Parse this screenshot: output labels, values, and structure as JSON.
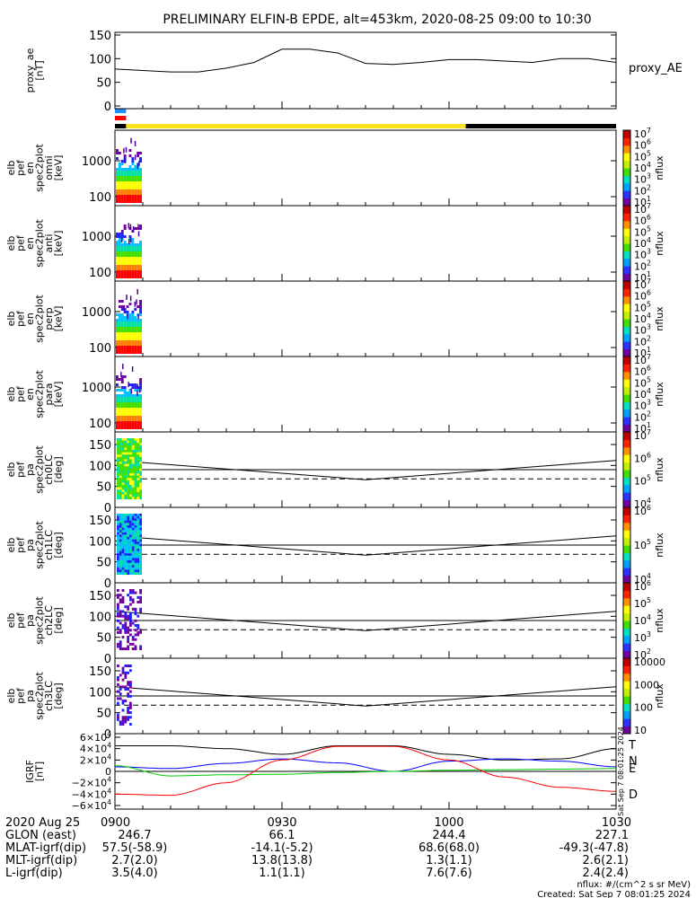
{
  "title": "PRELIMINARY ELFIN-B EPDE, alt=453km, 2020-08-25 09:00 to 10:30",
  "chart_data": [
    {
      "type": "line",
      "ylabel": "proxy_ae\n[nT]",
      "legend_label": "proxy_AE",
      "ylim": [
        0,
        150
      ],
      "yticks": [
        0,
        50,
        100,
        150
      ],
      "x_minutes": [
        0,
        5,
        10,
        15,
        20,
        25,
        30,
        35,
        40,
        45,
        50,
        55,
        60,
        65,
        70,
        75,
        80,
        85,
        90
      ],
      "values": [
        78,
        75,
        72,
        72,
        80,
        92,
        120,
        120,
        112,
        90,
        88,
        92,
        98,
        98,
        95,
        92,
        100,
        100,
        92
      ]
    },
    {
      "type": "heatmap",
      "ylabel": "elb\npef\nen\nspec2plot\nomni\n[keV]",
      "yticks": [
        "100",
        "1000"
      ],
      "colorbar_label": "nflux",
      "colorbar_ticks": [
        "10^1",
        "10^2",
        "10^3",
        "10^4",
        "10^5",
        "10^6",
        "10^7"
      ]
    },
    {
      "type": "heatmap",
      "ylabel": "elb\npef\nen\nspec2plot\nanti\n[keV]",
      "yticks": [
        "100",
        "1000"
      ],
      "colorbar_label": "nflux",
      "colorbar_ticks": [
        "10^1",
        "10^2",
        "10^3",
        "10^4",
        "10^5",
        "10^6",
        "10^7"
      ]
    },
    {
      "type": "heatmap",
      "ylabel": "elb\npef\nen\nspec2plot\nperp\n[keV]",
      "yticks": [
        "100",
        "1000"
      ],
      "colorbar_label": "nflux",
      "colorbar_ticks": [
        "10^1",
        "10^2",
        "10^3",
        "10^4",
        "10^5",
        "10^6",
        "10^7"
      ]
    },
    {
      "type": "heatmap",
      "ylabel": "elb\npef\nen\nspec2plot\npara\n[keV]",
      "yticks": [
        "100",
        "1000"
      ],
      "colorbar_label": "nflux",
      "colorbar_ticks": [
        "10^1",
        "10^2",
        "10^3",
        "10^4",
        "10^5",
        "10^6",
        "10^7"
      ]
    },
    {
      "type": "heatmap",
      "ylabel": "elb\npef\npa\nspec2plot\nch0LC\n[deg]",
      "ylim": [
        0,
        180
      ],
      "yticks": [
        "0",
        "50",
        "100",
        "150"
      ],
      "colorbar_label": "nflux",
      "colorbar_ticks": [
        "10^4",
        "10^5",
        "10^6",
        "10^7"
      ],
      "lc_solid_min": 90,
      "lc_solid": [
        112,
        66,
        112
      ],
      "lc_dashed": [
        68,
        68,
        68
      ]
    },
    {
      "type": "heatmap",
      "ylabel": "elb\npef\npa\nspec2plot\nch1LC\n[deg]",
      "ylim": [
        0,
        180
      ],
      "yticks": [
        "0",
        "50",
        "100",
        "150"
      ],
      "colorbar_label": "nflux",
      "colorbar_ticks": [
        "10^4",
        "10^5",
        "10^6"
      ],
      "lc_solid_min": 90,
      "lc_solid": [
        112,
        66,
        112
      ],
      "lc_dashed": [
        68,
        68,
        68
      ]
    },
    {
      "type": "heatmap",
      "ylabel": "elb\npef\npa\nspec2plot\nch2LC\n[deg]",
      "ylim": [
        0,
        180
      ],
      "yticks": [
        "0",
        "50",
        "100",
        "150"
      ],
      "colorbar_label": "nflux",
      "colorbar_ticks": [
        "10^2",
        "10^3",
        "10^4",
        "10^5",
        "10^6"
      ],
      "lc_solid_min": 90,
      "lc_solid": [
        112,
        66,
        112
      ],
      "lc_dashed": [
        68,
        68,
        68
      ]
    },
    {
      "type": "heatmap",
      "ylabel": "elb\npef\npa\nspec2plot\nch3LC\n[deg]",
      "ylim": [
        0,
        180
      ],
      "yticks": [
        "0",
        "50",
        "100",
        "150"
      ],
      "colorbar_label": "nflux",
      "colorbar_ticks": [
        "10",
        "100",
        "1000",
        "10000"
      ],
      "lc_solid_min": 90,
      "lc_solid": [
        112,
        66,
        112
      ],
      "lc_dashed": [
        68,
        68,
        68
      ]
    },
    {
      "type": "line",
      "ylabel": "IGRF\n[nT]",
      "ylim": [
        -60000,
        60000
      ],
      "yticks": [
        "−6×10^4",
        "−4×10^4",
        "−2×10^4",
        "0",
        "2×10^4",
        "4×10^4",
        "6×10^4"
      ],
      "x_minutes": [
        0,
        10,
        20,
        30,
        40,
        50,
        60,
        70,
        80,
        90
      ],
      "series": [
        {
          "name": "T",
          "color": "#000000",
          "values": [
            45000,
            45000,
            40000,
            30000,
            45000,
            45000,
            30000,
            20000,
            22000,
            40000
          ]
        },
        {
          "name": "N",
          "color": "#0000ff",
          "values": [
            8000,
            5000,
            14000,
            22000,
            15000,
            0,
            18000,
            22000,
            18000,
            8000
          ]
        },
        {
          "name": "E",
          "color": "#00cc00",
          "values": [
            10000,
            -8000,
            -6000,
            -5000,
            -2000,
            0,
            2000,
            3000,
            4000,
            5000
          ]
        },
        {
          "name": "D",
          "color": "#ff0000",
          "values": [
            -40000,
            -42000,
            -20000,
            20000,
            44000,
            44000,
            20000,
            -10000,
            -28000,
            -35000
          ]
        }
      ]
    }
  ],
  "xaxis": {
    "date_label": "2020 Aug 25",
    "ticks": [
      "0900",
      "0930",
      "1000",
      "1030"
    ],
    "rows": [
      {
        "label": "GLON (east)",
        "values": [
          "246.7",
          "66.1",
          "244.4",
          "227.1"
        ]
      },
      {
        "label": "MLAT-igrf(dip)",
        "values": [
          "57.5(-58.9)",
          "-14.1(-5.2)",
          "68.6(68.0)",
          "-49.3(-47.8)"
        ]
      },
      {
        "label": "MLT-igrf(dip)",
        "values": [
          "2.7(2.0)",
          "13.8(13.8)",
          "1.3(1.1)",
          "2.6(2.1)"
        ]
      },
      {
        "label": "L-igrf(dip)",
        "values": [
          "3.5(4.0)",
          "1.1(1.1)",
          "7.6(7.6)",
          "2.4(2.4)"
        ]
      }
    ]
  },
  "footer": {
    "units": "nflux: #/(cm^2 s sr MeV)",
    "created": "Created: Sat Sep  7 08:01:25 2024",
    "stamp": "Sat Sep  7 08:01:25 2024"
  },
  "bars": [
    {
      "color": "#1e90ff",
      "x0_min": 0,
      "x1_min": 2
    },
    {
      "color": "#ff0000",
      "x0_min": 0,
      "x1_min": 2
    },
    {
      "color": "#000000",
      "x0_min": 0,
      "x1_min": 2
    },
    {
      "color": "#ffe11a",
      "x0_min": 2,
      "x1_min": 63
    },
    {
      "color": "#000000",
      "x0_min": 63,
      "x1_min": 90
    }
  ],
  "colors": {
    "colormap": [
      "#ffffff",
      "#7000a0",
      "#2020ff",
      "#00c0ff",
      "#00e0a0",
      "#40e000",
      "#ffff00",
      "#ff8000",
      "#ff0000"
    ]
  }
}
